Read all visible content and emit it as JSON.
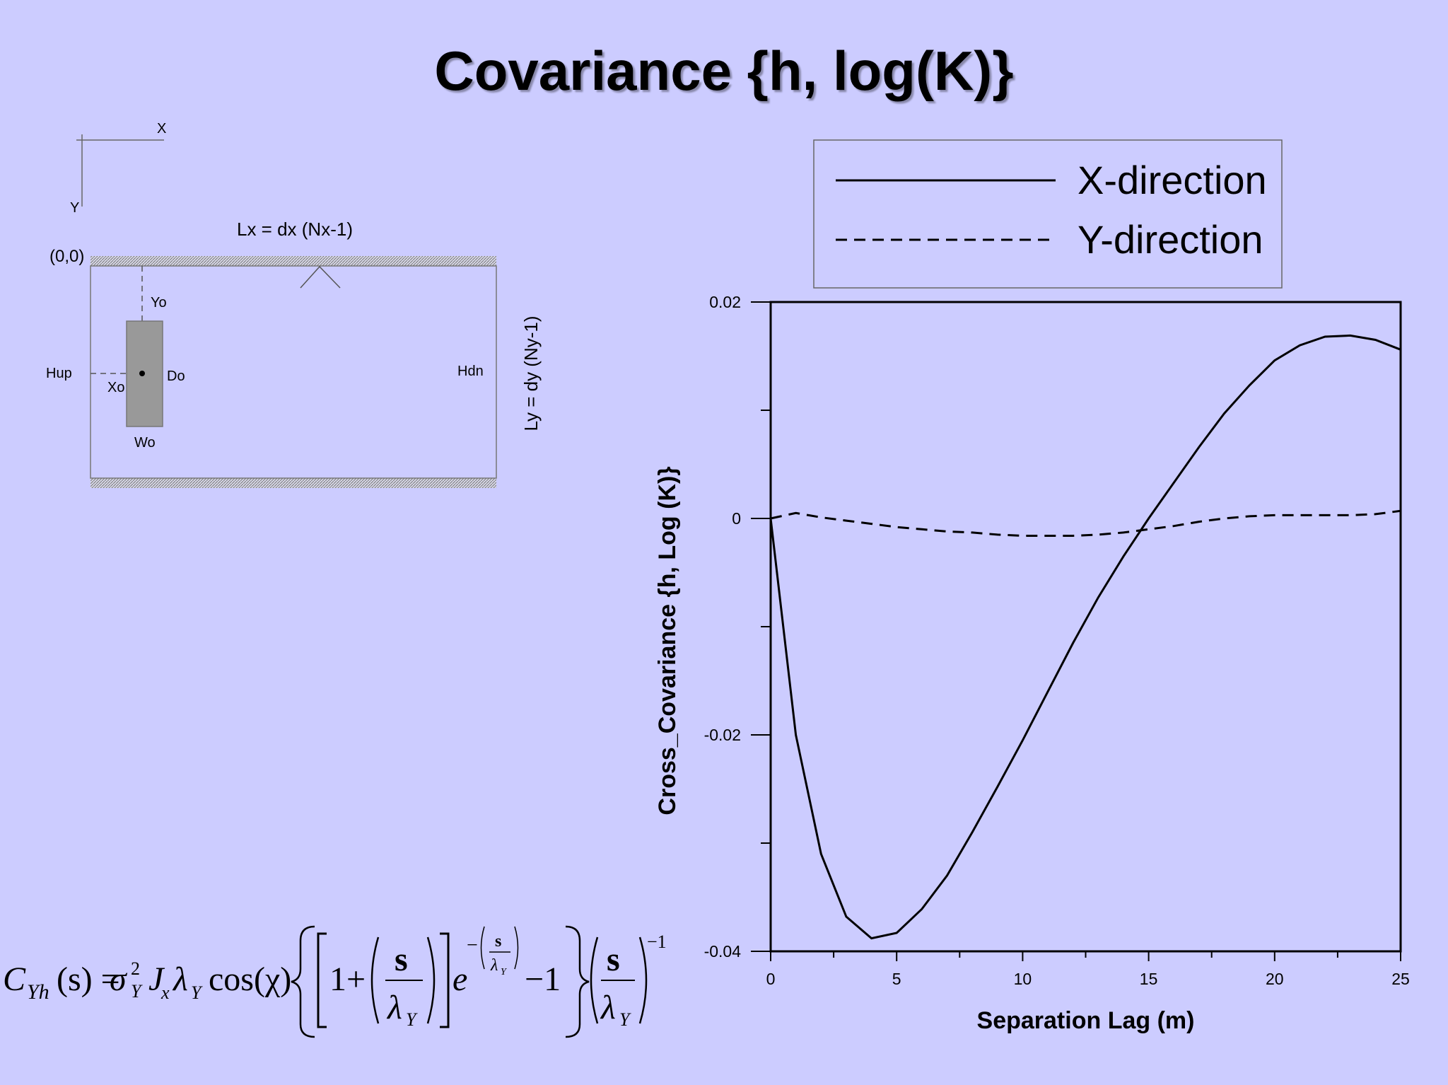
{
  "title": "Covariance {h, log(K)}",
  "diagram": {
    "axis_x_label": "X",
    "axis_y_label": "Y",
    "lx_label": "Lx = dx (Nx-1)",
    "origin_label": "(0,0)",
    "yo_label": "Yo",
    "hup_label": "Hup",
    "xo_label": "Xo",
    "do_label": "Do",
    "hdn_label": "Hdn",
    "wo_label": "Wo",
    "ly_label": "Ly = dy (Ny-1)"
  },
  "chart_data": {
    "type": "line",
    "title": "",
    "xlabel": "Separation Lag (m)",
    "ylabel": "Cross_Covariance {h, Log (K)}",
    "xlim": [
      0,
      25
    ],
    "ylim": [
      -0.04,
      0.02
    ],
    "xticks": [
      "0",
      "5",
      "10",
      "15",
      "20",
      "25"
    ],
    "yticks": [
      "0.02",
      "0",
      "-0.02",
      "-0.04"
    ],
    "legend_position": "top-right",
    "series": [
      {
        "name": "X-direction",
        "style": "solid",
        "x": [
          0,
          1,
          2,
          3,
          4,
          5,
          6,
          7,
          8,
          9,
          10,
          11,
          12,
          13,
          14,
          15,
          16,
          17,
          18,
          19,
          20,
          21,
          22,
          23,
          24,
          25
        ],
        "y": [
          0,
          -0.02,
          -0.031,
          -0.0368,
          -0.0388,
          -0.0383,
          -0.0361,
          -0.033,
          -0.029,
          -0.0248,
          -0.0205,
          -0.016,
          -0.0115,
          -0.0073,
          -0.0035,
          0,
          0.0033,
          0.0066,
          0.0097,
          0.0123,
          0.0146,
          0.016,
          0.0168,
          0.0169,
          0.0165,
          0.0156
        ]
      },
      {
        "name": "Y-direction",
        "style": "dashed",
        "x": [
          0,
          1,
          2,
          3,
          4,
          5,
          6,
          7,
          8,
          9,
          10,
          11,
          12,
          13,
          14,
          15,
          16,
          17,
          18,
          19,
          20,
          21,
          22,
          23,
          24,
          25
        ],
        "y": [
          0,
          0.0005,
          0.0001,
          -0.0002,
          -0.0005,
          -0.0008,
          -0.001,
          -0.0012,
          -0.0013,
          -0.0015,
          -0.0016,
          -0.0016,
          -0.0016,
          -0.0015,
          -0.0013,
          -0.001,
          -0.0007,
          -0.0003,
          0,
          0.0002,
          0.0003,
          0.0003,
          0.0003,
          0.0003,
          0.0004,
          0.0007
        ]
      }
    ]
  },
  "equation": {
    "lhs_C": "C",
    "lhs_sub": "Yh",
    "lhs_arg": "(s) =",
    "sigma": "σ",
    "sigma_sup": "2",
    "sigma_sub": "Y",
    "J": "J",
    "J_sub": "x",
    "lambda": "λ",
    "lambda_sub": "Y",
    "cos": "cos(χ)",
    "one_plus": "1+",
    "s": "s",
    "e": "e",
    "minus": "−",
    "minus_one": "−1",
    "neg_one_exp": "−1"
  }
}
